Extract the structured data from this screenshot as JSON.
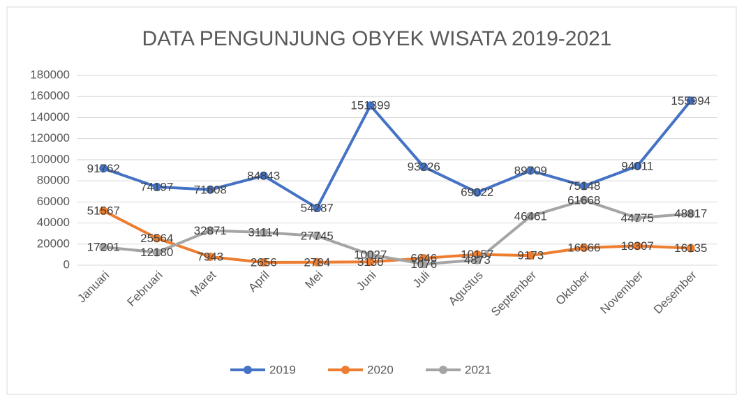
{
  "chart_data": {
    "type": "line",
    "title": "DATA PENGUNJUNG OBYEK WISATA 2019-2021",
    "categories": [
      "Januari",
      "Februari",
      "Maret",
      "April",
      "Mei",
      "Juni",
      "Juli",
      "Agustus",
      "September",
      "Oktober",
      "November",
      "Desember"
    ],
    "series": [
      {
        "name": "2019",
        "color": "#4472c4",
        "values": [
          91762,
          74197,
          71608,
          84843,
          54287,
          151399,
          93226,
          69022,
          89709,
          75148,
          94011,
          155994
        ]
      },
      {
        "name": "2020",
        "color": "#ed7d31",
        "values": [
          51567,
          25564,
          7943,
          2656,
          2784,
          3130,
          6646,
          10157,
          9173,
          16566,
          18307,
          16135
        ]
      },
      {
        "name": "2021",
        "color": "#a5a5a5",
        "values": [
          17201,
          12180,
          32871,
          31114,
          27745,
          10027,
          1076,
          4873,
          46461,
          61668,
          44775,
          48817
        ]
      }
    ],
    "ylim": [
      0,
      180000
    ],
    "yticks": [
      0,
      20000,
      40000,
      60000,
      80000,
      100000,
      120000,
      140000,
      160000,
      180000
    ],
    "grid": true,
    "legend": "bottom",
    "data_labels": true
  }
}
